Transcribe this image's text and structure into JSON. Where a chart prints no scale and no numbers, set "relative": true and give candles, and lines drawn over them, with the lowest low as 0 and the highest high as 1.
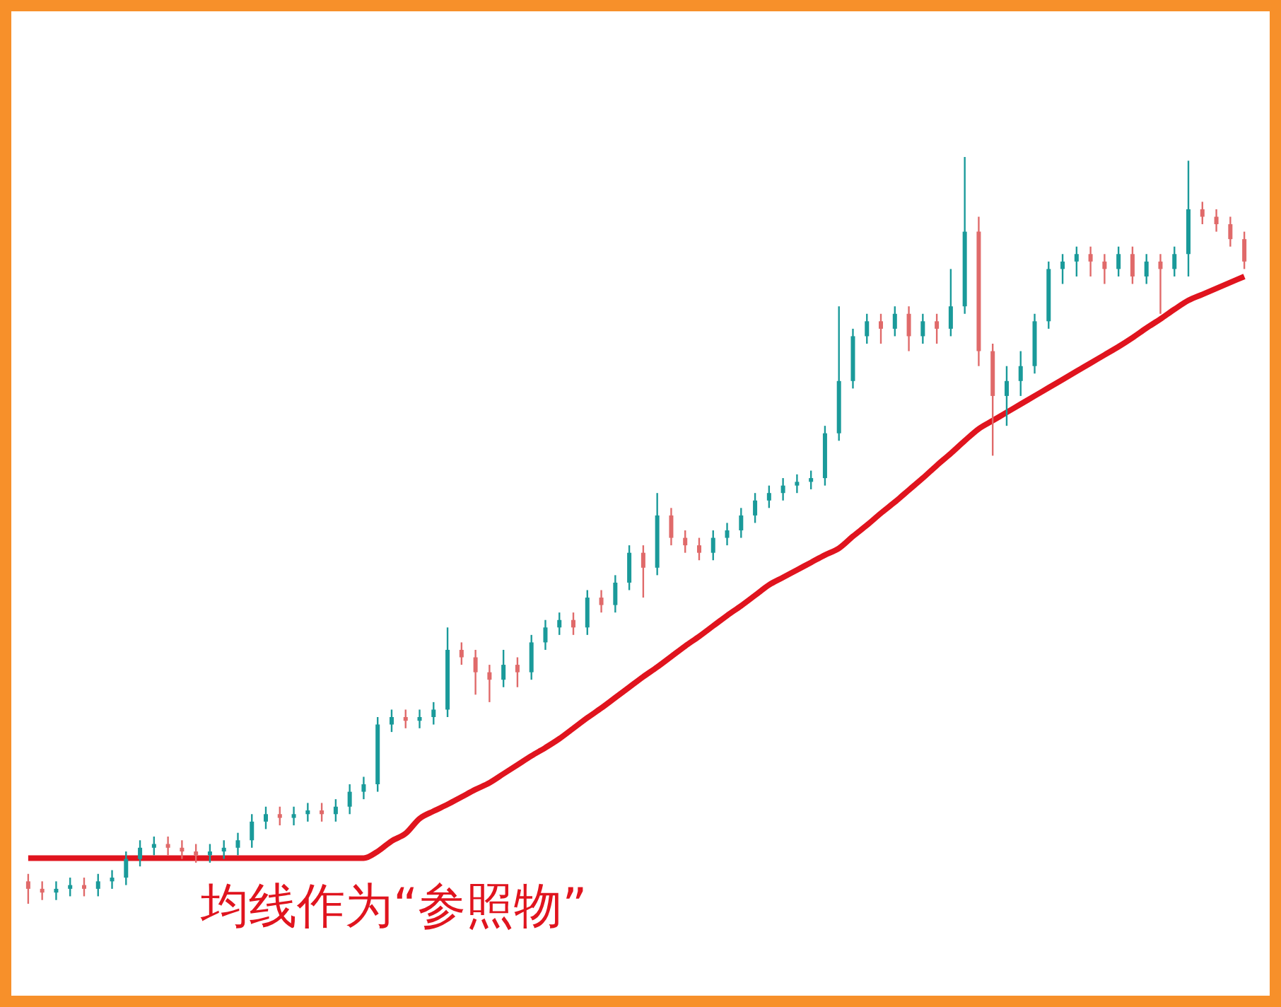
{
  "chart_data": {
    "type": "candlestick",
    "relative": true,
    "annotations": [
      "均线作为“参照物”"
    ],
    "categories": [
      null,
      null,
      null,
      null,
      null,
      null,
      null,
      null,
      null,
      null,
      null,
      null,
      null,
      null,
      null,
      null,
      null,
      null,
      null,
      null,
      null,
      null,
      null,
      null,
      null,
      null,
      null,
      null,
      null,
      null,
      null,
      null,
      null,
      null,
      null,
      null,
      null,
      null,
      null,
      null,
      null,
      null,
      null,
      null,
      null,
      null,
      null,
      null,
      null,
      null,
      null,
      null,
      null,
      null,
      null,
      null,
      null,
      null,
      null,
      null,
      null,
      null,
      null,
      null,
      null,
      null,
      null,
      null,
      null,
      null,
      null,
      null,
      null,
      null,
      null,
      null,
      null,
      null,
      null,
      null,
      null,
      null,
      null,
      null,
      null,
      null,
      null,
      null
    ],
    "ohlc": [
      [
        0.03,
        0.04,
        0,
        0.02
      ],
      [
        0.02,
        0.03,
        0.005,
        0.015
      ],
      [
        0.015,
        0.03,
        0.005,
        0.02
      ],
      [
        0.02,
        0.035,
        0.01,
        0.025
      ],
      [
        0.025,
        0.035,
        0.01,
        0.02
      ],
      [
        0.02,
        0.04,
        0.01,
        0.03
      ],
      [
        0.03,
        0.045,
        0.02,
        0.035
      ],
      [
        0.035,
        0.07,
        0.025,
        0.06
      ],
      [
        0.06,
        0.085,
        0.05,
        0.075
      ],
      [
        0.075,
        0.09,
        0.065,
        0.08
      ],
      [
        0.08,
        0.09,
        0.065,
        0.075
      ],
      [
        0.075,
        0.085,
        0.06,
        0.07
      ],
      [
        0.07,
        0.08,
        0.055,
        0.065
      ],
      [
        0.065,
        0.08,
        0.055,
        0.07
      ],
      [
        0.07,
        0.085,
        0.06,
        0.075
      ],
      [
        0.075,
        0.095,
        0.065,
        0.085
      ],
      [
        0.085,
        0.12,
        0.075,
        0.11
      ],
      [
        0.11,
        0.13,
        0.1,
        0.12
      ],
      [
        0.12,
        0.13,
        0.105,
        0.115
      ],
      [
        0.115,
        0.13,
        0.105,
        0.12
      ],
      [
        0.12,
        0.135,
        0.11,
        0.125
      ],
      [
        0.125,
        0.135,
        0.11,
        0.12
      ],
      [
        0.12,
        0.14,
        0.11,
        0.13
      ],
      [
        0.13,
        0.16,
        0.12,
        0.15
      ],
      [
        0.15,
        0.17,
        0.14,
        0.16
      ],
      [
        0.16,
        0.25,
        0.15,
        0.24
      ],
      [
        0.24,
        0.26,
        0.23,
        0.25
      ],
      [
        0.25,
        0.26,
        0.235,
        0.245
      ],
      [
        0.245,
        0.26,
        0.235,
        0.25
      ],
      [
        0.25,
        0.27,
        0.24,
        0.26
      ],
      [
        0.26,
        0.37,
        0.25,
        0.34
      ],
      [
        0.34,
        0.35,
        0.32,
        0.33
      ],
      [
        0.33,
        0.34,
        0.28,
        0.31
      ],
      [
        0.31,
        0.32,
        0.27,
        0.3
      ],
      [
        0.3,
        0.34,
        0.29,
        0.32
      ],
      [
        0.32,
        0.33,
        0.29,
        0.31
      ],
      [
        0.31,
        0.36,
        0.3,
        0.35
      ],
      [
        0.35,
        0.38,
        0.34,
        0.37
      ],
      [
        0.37,
        0.39,
        0.36,
        0.38
      ],
      [
        0.38,
        0.39,
        0.36,
        0.37
      ],
      [
        0.37,
        0.42,
        0.36,
        0.41
      ],
      [
        0.41,
        0.42,
        0.39,
        0.4
      ],
      [
        0.4,
        0.44,
        0.39,
        0.43
      ],
      [
        0.43,
        0.48,
        0.42,
        0.47
      ],
      [
        0.47,
        0.48,
        0.41,
        0.45
      ],
      [
        0.45,
        0.55,
        0.44,
        0.52
      ],
      [
        0.52,
        0.53,
        0.48,
        0.49
      ],
      [
        0.49,
        0.5,
        0.47,
        0.48
      ],
      [
        0.48,
        0.49,
        0.46,
        0.47
      ],
      [
        0.47,
        0.5,
        0.46,
        0.49
      ],
      [
        0.49,
        0.51,
        0.48,
        0.5
      ],
      [
        0.5,
        0.53,
        0.49,
        0.52
      ],
      [
        0.52,
        0.55,
        0.51,
        0.54
      ],
      [
        0.54,
        0.56,
        0.53,
        0.55
      ],
      [
        0.55,
        0.57,
        0.54,
        0.56
      ],
      [
        0.56,
        0.575,
        0.55,
        0.565
      ],
      [
        0.565,
        0.58,
        0.555,
        0.57
      ],
      [
        0.57,
        0.64,
        0.56,
        0.63
      ],
      [
        0.63,
        0.8,
        0.62,
        0.7
      ],
      [
        0.7,
        0.77,
        0.69,
        0.76
      ],
      [
        0.76,
        0.79,
        0.75,
        0.78
      ],
      [
        0.78,
        0.79,
        0.75,
        0.77
      ],
      [
        0.77,
        0.8,
        0.76,
        0.79
      ],
      [
        0.79,
        0.8,
        0.74,
        0.76
      ],
      [
        0.76,
        0.79,
        0.75,
        0.78
      ],
      [
        0.78,
        0.79,
        0.75,
        0.77
      ],
      [
        0.77,
        0.85,
        0.76,
        0.8
      ],
      [
        0.8,
        1,
        0.79,
        0.9
      ],
      [
        0.9,
        0.92,
        0.72,
        0.74
      ],
      [
        0.74,
        0.75,
        0.6,
        0.68
      ],
      [
        0.68,
        0.72,
        0.64,
        0.7
      ],
      [
        0.7,
        0.74,
        0.68,
        0.72
      ],
      [
        0.72,
        0.79,
        0.71,
        0.78
      ],
      [
        0.78,
        0.86,
        0.77,
        0.85
      ],
      [
        0.85,
        0.87,
        0.83,
        0.86
      ],
      [
        0.86,
        0.88,
        0.84,
        0.87
      ],
      [
        0.87,
        0.88,
        0.84,
        0.86
      ],
      [
        0.86,
        0.87,
        0.83,
        0.85
      ],
      [
        0.85,
        0.88,
        0.84,
        0.87
      ],
      [
        0.87,
        0.88,
        0.83,
        0.84
      ],
      [
        0.84,
        0.87,
        0.83,
        0.86
      ],
      [
        0.86,
        0.87,
        0.79,
        0.85
      ],
      [
        0.85,
        0.88,
        0.84,
        0.87
      ],
      [
        0.87,
        0.995,
        0.84,
        0.93
      ],
      [
        0.93,
        0.94,
        0.91,
        0.92
      ],
      [
        0.92,
        0.93,
        0.9,
        0.91
      ],
      [
        0.91,
        0.92,
        0.88,
        0.89
      ],
      [
        0.89,
        0.9,
        0.85,
        0.86
      ]
    ],
    "colors": [
      "#e06a6a",
      "#e06a6a",
      "#1a9a9a",
      "#1a9a9a",
      "#e06a6a",
      "#1a9a9a",
      "#1a9a9a",
      "#1a9a9a",
      "#1a9a9a",
      "#1a9a9a",
      "#e06a6a",
      "#e06a6a",
      "#e06a6a",
      "#1a9a9a",
      "#1a9a9a",
      "#1a9a9a",
      "#1a9a9a",
      "#1a9a9a",
      "#e06a6a",
      "#1a9a9a",
      "#1a9a9a",
      "#e06a6a",
      "#1a9a9a",
      "#1a9a9a",
      "#1a9a9a",
      "#1a9a9a",
      "#1a9a9a",
      "#e06a6a",
      "#1a9a9a",
      "#1a9a9a",
      "#1a9a9a",
      "#e06a6a",
      "#e06a6a",
      "#e06a6a",
      "#1a9a9a",
      "#e06a6a",
      "#1a9a9a",
      "#1a9a9a",
      "#1a9a9a",
      "#e06a6a",
      "#1a9a9a",
      "#e06a6a",
      "#1a9a9a",
      "#1a9a9a",
      "#e06a6a",
      "#1a9a9a",
      "#e06a6a",
      "#e06a6a",
      "#e06a6a",
      "#1a9a9a",
      "#1a9a9a",
      "#1a9a9a",
      "#1a9a9a",
      "#1a9a9a",
      "#1a9a9a",
      "#1a9a9a",
      "#1a9a9a",
      "#1a9a9a",
      "#1a9a9a",
      "#1a9a9a",
      "#1a9a9a",
      "#e06a6a",
      "#1a9a9a",
      "#e06a6a",
      "#1a9a9a",
      "#e06a6a",
      "#1a9a9a",
      "#1a9a9a",
      "#e06a6a",
      "#e06a6a",
      "#1a9a9a",
      "#1a9a9a",
      "#1a9a9a",
      "#1a9a9a",
      "#1a9a9a",
      "#1a9a9a",
      "#e06a6a",
      "#e06a6a",
      "#1a9a9a",
      "#e06a6a",
      "#1a9a9a",
      "#e06a6a",
      "#1a9a9a",
      "#1a9a9a",
      "#e06a6a",
      "#e06a6a",
      "#e06a6a",
      "#e06a6a"
    ],
    "series": [
      {
        "type": "line",
        "color": "#e0141e",
        "values": [
          0.061,
          0.061,
          0.061,
          0.061,
          0.061,
          0.061,
          0.061,
          0.061,
          0.061,
          0.061,
          0.061,
          0.061,
          0.061,
          0.061,
          0.061,
          0.061,
          0.061,
          0.061,
          0.061,
          0.061,
          0.061,
          0.061,
          0.061,
          0.061,
          0.061,
          0.07,
          0.084,
          0.094,
          0.114,
          0.124,
          0.133,
          0.143,
          0.153,
          0.162,
          0.174,
          0.186,
          0.198,
          0.209,
          0.221,
          0.235,
          0.249,
          0.262,
          0.276,
          0.29,
          0.304,
          0.317,
          0.331,
          0.345,
          0.358,
          0.372,
          0.386,
          0.399,
          0.413,
          0.427,
          0.437,
          0.447,
          0.457,
          0.467,
          0.476,
          0.492,
          0.507,
          0.523,
          0.538,
          0.554,
          0.57,
          0.587,
          0.603,
          0.62,
          0.636,
          0.647,
          0.658,
          0.669,
          0.68,
          0.691,
          0.702,
          0.713,
          0.724,
          0.735,
          0.746,
          0.758,
          0.771,
          0.783,
          0.796,
          0.808,
          0.816,
          0.824,
          0.832,
          0.84
        ]
      }
    ]
  }
}
